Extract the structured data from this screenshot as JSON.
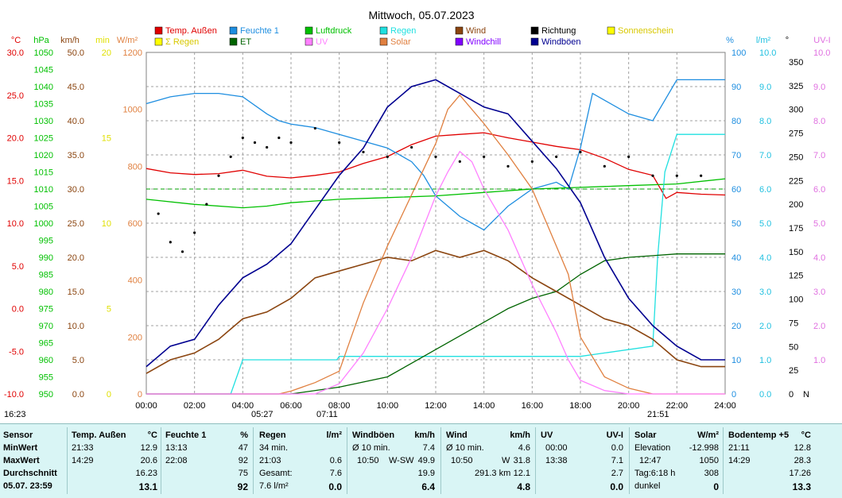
{
  "chart_data": {
    "type": "line",
    "title": "Mittwoch, 05.07.2023",
    "x_ticks": [
      "00:00",
      "02:00",
      "04:00",
      "06:00",
      "08:00",
      "10:00",
      "12:00",
      "14:00",
      "16:00",
      "18:00",
      "20:00",
      "22:00",
      "24:00"
    ],
    "xlim": [
      0,
      24
    ],
    "grid": true,
    "legend_position": "top",
    "legend": [
      {
        "name": "Temp. Außen",
        "color": "#e00000"
      },
      {
        "name": "Feuchte 1",
        "color": "#1e8ee0"
      },
      {
        "name": "Luftdruck",
        "color": "#00c000"
      },
      {
        "name": "Regen",
        "color": "#20e0e0"
      },
      {
        "name": "Wind",
        "color": "#8b4510"
      },
      {
        "name": "Richtung",
        "color": "#000000"
      },
      {
        "name": "Sonnenschein",
        "color": "#ffff00"
      },
      {
        "name": "Σ Regen",
        "color": "#ffff00"
      },
      {
        "name": "ET",
        "color": "#006400"
      },
      {
        "name": "UV",
        "color": "#ff80ff"
      },
      {
        "name": "Solar",
        "color": "#e08040"
      },
      {
        "name": "Windchill",
        "color": "#8000ff"
      },
      {
        "name": "Windböen",
        "color": "#000090"
      }
    ],
    "axes": {
      "temp": {
        "unit": "°C",
        "ylim": [
          -10,
          30
        ],
        "ticks": [
          "30.0",
          "25.0",
          "20.0",
          "15.0",
          "10.0",
          "5.0",
          "0.0",
          "-5.0",
          "-10.0"
        ],
        "color": "#e00000"
      },
      "pressure": {
        "unit": "hPa",
        "ylim": [
          950,
          1050
        ],
        "ticks": [
          "1050",
          "1045",
          "1040",
          "1035",
          "1030",
          "1025",
          "1020",
          "1015",
          "1010",
          "1005",
          "1000",
          "995",
          "990",
          "985",
          "980",
          "975",
          "970",
          "965",
          "960",
          "955",
          "950"
        ],
        "color": "#00c000"
      },
      "wind": {
        "unit": "km/h",
        "ylim": [
          0,
          50
        ],
        "ticks": [
          "50.0",
          "45.0",
          "40.0",
          "35.0",
          "30.0",
          "25.0",
          "20.0",
          "15.0",
          "10.0",
          "5.0",
          "0.0"
        ],
        "color": "#8b4510"
      },
      "minutes": {
        "unit": "min",
        "ylim": [
          0,
          20
        ],
        "ticks": [
          "20",
          "15",
          "10",
          "5",
          "0"
        ],
        "color": "#e0e000"
      },
      "solar": {
        "unit": "W/m²",
        "ylim": [
          0,
          1200
        ],
        "ticks": [
          "1200",
          "1000",
          "800",
          "600",
          "400",
          "200",
          "0"
        ],
        "color": "#e08040"
      },
      "humidity": {
        "unit": "%",
        "ylim": [
          0,
          100
        ],
        "ticks": [
          "100",
          "90",
          "80",
          "70",
          "60",
          "50",
          "40",
          "30",
          "20",
          "10",
          "0"
        ],
        "color": "#1e8ee0"
      },
      "rain": {
        "unit": "l/m²",
        "ylim": [
          0,
          10
        ],
        "ticks": [
          "10.0",
          "9.0",
          "8.0",
          "7.0",
          "6.0",
          "5.0",
          "4.0",
          "3.0",
          "2.0",
          "1.0",
          "0.0"
        ],
        "color": "#20c0e0"
      },
      "direction": {
        "unit": "°",
        "ylim": [
          0,
          360
        ],
        "ticks": [
          "350",
          "325",
          "300",
          "275",
          "250",
          "225",
          "200",
          "175",
          "150",
          "125",
          "100",
          "75",
          "50",
          "25",
          "0"
        ],
        "bottom_label": "N",
        "color": "#000000"
      },
      "uv": {
        "unit": "UV-I",
        "ylim": [
          0,
          10
        ],
        "ticks": [
          "10.0",
          "9.0",
          "8.0",
          "7.0",
          "6.0",
          "5.0",
          "4.0",
          "3.0",
          "2.0",
          "1.0"
        ],
        "color": "#e070e0"
      }
    },
    "sun_markers": {
      "sunrise": "05:27",
      "sunset": "21:51",
      "solar_noon": "07:11",
      "first": "16:23"
    },
    "series": [
      {
        "name": "Temp. Außen",
        "axis": "temp",
        "x": [
          0,
          1,
          2,
          3,
          4,
          5,
          6,
          7,
          8,
          9,
          10,
          11,
          12,
          13,
          14,
          15,
          16,
          17,
          18,
          19,
          20,
          21,
          21.55,
          22,
          23,
          24
        ],
        "y": [
          16.4,
          15.9,
          15.7,
          15.8,
          16.2,
          15.5,
          15.3,
          15.6,
          16,
          17,
          17.8,
          19.2,
          20.2,
          20.4,
          20.6,
          20,
          19.5,
          19,
          18.6,
          17.6,
          16.3,
          15.6,
          12.9,
          13.6,
          13.4,
          13.3
        ]
      },
      {
        "name": "Feuchte 1",
        "axis": "humidity",
        "x": [
          0,
          1,
          2,
          3,
          4,
          5,
          5.5,
          6,
          7,
          8,
          9,
          10,
          11,
          11.5,
          12,
          12.5,
          13,
          13.5,
          14,
          15,
          16,
          17,
          17.5,
          18,
          18.5,
          19,
          20,
          21,
          21.5,
          22,
          23,
          24
        ],
        "y": [
          85,
          87,
          88,
          88,
          87,
          82,
          80,
          79,
          78,
          76,
          74,
          72,
          68,
          64,
          58,
          55,
          52,
          50,
          48,
          55,
          60,
          62,
          60,
          72,
          88,
          86,
          82,
          80,
          86,
          92,
          92,
          92
        ]
      },
      {
        "name": "Luftdruck",
        "axis": "pressure",
        "x": [
          0,
          2,
          4,
          5,
          6,
          8,
          10,
          12,
          14,
          16,
          18,
          20,
          22,
          24
        ],
        "y": [
          1007,
          1005.5,
          1004.5,
          1005,
          1006,
          1007,
          1007.5,
          1008,
          1009,
          1010,
          1010.5,
          1011,
          1011.5,
          1013
        ]
      },
      {
        "name": "Regen",
        "axis": "rain",
        "x": [
          0,
          3.5,
          3.9,
          4,
          7.9,
          8,
          17.9,
          18,
          21,
          21.2,
          21.5,
          22,
          24
        ],
        "y": [
          0,
          0,
          0.8,
          1,
          1,
          1.1,
          1.1,
          1.1,
          1.4,
          4,
          6.5,
          7.6,
          7.6
        ]
      },
      {
        "name": "ET",
        "axis": "rain",
        "x": [
          0,
          6,
          8,
          10,
          11,
          12,
          13,
          14,
          15,
          16,
          17,
          18,
          19,
          20,
          21,
          22,
          24
        ],
        "y": [
          0,
          0,
          0.2,
          0.5,
          0.9,
          1.3,
          1.7,
          2.1,
          2.5,
          2.8,
          3,
          3.5,
          3.9,
          4,
          4.05,
          4.1,
          4.1
        ]
      },
      {
        "name": "Wind",
        "axis": "wind",
        "x": [
          0,
          1,
          2,
          3,
          4,
          5,
          6,
          7,
          8,
          9,
          10,
          11,
          12,
          13,
          14,
          15,
          16,
          17,
          18,
          19,
          20,
          21,
          22,
          23,
          24
        ],
        "y": [
          3,
          5,
          6,
          8,
          11,
          12,
          14,
          17,
          18,
          19,
          20,
          19.5,
          21,
          20,
          21,
          19.5,
          17,
          15,
          13,
          11,
          10,
          8,
          5,
          4,
          4
        ]
      },
      {
        "name": "Windböen",
        "axis": "wind",
        "x": [
          0,
          1,
          2,
          3,
          4,
          5,
          6,
          7,
          8,
          9,
          10,
          11,
          12,
          13,
          14,
          15,
          16,
          17,
          18,
          19,
          20,
          21,
          22,
          23,
          24
        ],
        "y": [
          4,
          7,
          8,
          13,
          17,
          19,
          22,
          27,
          32,
          36,
          42,
          45,
          46,
          44,
          42,
          41,
          37,
          33,
          28,
          20,
          14,
          10,
          7,
          5,
          5
        ]
      },
      {
        "name": "Solar",
        "axis": "solar",
        "x": [
          0,
          5.5,
          6,
          7,
          8,
          8.5,
          9,
          10,
          11,
          12,
          12.5,
          13,
          14,
          15,
          16,
          17,
          17.5,
          18,
          19,
          20,
          21,
          24
        ],
        "y": [
          0,
          0,
          10,
          40,
          80,
          200,
          320,
          520,
          700,
          880,
          1000,
          1050,
          950,
          840,
          720,
          520,
          420,
          200,
          60,
          20,
          0,
          0
        ]
      },
      {
        "name": "UV",
        "axis": "uv",
        "x": [
          0,
          7,
          8,
          9,
          10,
          11,
          12,
          12.5,
          13,
          13.5,
          14,
          15,
          16,
          17,
          17.5,
          18,
          19,
          20,
          24
        ],
        "y": [
          0,
          0,
          0.3,
          1.2,
          2.5,
          4,
          5.8,
          6.5,
          7.1,
          6.8,
          6,
          4.8,
          3.2,
          1.8,
          1,
          0.4,
          0.1,
          0,
          0
        ]
      },
      {
        "name": "Richtung",
        "axis": "direction",
        "type": "scatter",
        "x": [
          0.5,
          1,
          1.5,
          2,
          2.5,
          3,
          3.5,
          4,
          4.5,
          5,
          5.5,
          6,
          7,
          8,
          9,
          10,
          11,
          12,
          13,
          14,
          15,
          16,
          17,
          18,
          19,
          20,
          21,
          22,
          23
        ],
        "y": [
          190,
          160,
          150,
          170,
          200,
          230,
          250,
          270,
          265,
          260,
          270,
          265,
          280,
          265,
          255,
          250,
          260,
          250,
          245,
          250,
          240,
          245,
          250,
          255,
          240,
          250,
          230,
          230,
          230
        ]
      }
    ]
  },
  "summary": {
    "sensor": {
      "header": "Sensor",
      "rows": [
        "MinWert",
        "MaxWert",
        "Durchschnitt",
        "05.07. 23:59"
      ]
    },
    "temp": {
      "header": "Temp. Außen",
      "unit": "°C",
      "rows": [
        [
          "21:33",
          "12.9"
        ],
        [
          "14:29",
          "20.6"
        ],
        [
          "",
          "16.23"
        ],
        [
          "",
          "13.1"
        ]
      ]
    },
    "feuchte": {
      "header": "Feuchte 1",
      "unit": "%",
      "rows": [
        [
          "13:13",
          "47"
        ],
        [
          "22:08",
          "92"
        ],
        [
          "",
          "75"
        ],
        [
          "",
          "92"
        ]
      ]
    },
    "regen": {
      "header": "Regen",
      "unit": "l/m²",
      "rows": [
        [
          "34 min.",
          ""
        ],
        [
          "21:03",
          "0.6"
        ],
        [
          "Gesamt:",
          "7.6"
        ],
        [
          "7.6 l/m²",
          "0.0"
        ]
      ]
    },
    "windboeen": {
      "header": "Windböen",
      "unit": "km/h",
      "rows": [
        [
          "Ø 10 min.",
          "",
          "7.4"
        ],
        [
          "10:50",
          "W-SW",
          "49.9"
        ],
        [
          "",
          "",
          "19.9"
        ],
        [
          "",
          "",
          "6.4"
        ]
      ]
    },
    "wind": {
      "header": "Wind",
      "unit": "km/h",
      "rows": [
        [
          "Ø 10 min.",
          "",
          "4.6"
        ],
        [
          "10:50",
          "W",
          "31.8"
        ],
        [
          "",
          "291.3 km",
          "12.1"
        ],
        [
          "",
          "",
          "4.8"
        ]
      ]
    },
    "uv": {
      "header": "UV",
      "unit": "UV-I",
      "rows": [
        [
          "00:00",
          "0.0"
        ],
        [
          "13:38",
          "7.1"
        ],
        [
          "",
          "2.7"
        ],
        [
          "",
          "0.0"
        ]
      ]
    },
    "solar": {
      "header": "Solar",
      "unit": "W/m²",
      "rows": [
        [
          "Elevation",
          "-12.998"
        ],
        [
          "12:47",
          "1050"
        ],
        [
          "Tag:6:18 h",
          "308"
        ],
        [
          "dunkel",
          "0"
        ]
      ]
    },
    "boden": {
      "header": "Bodentemp +5",
      "unit": "°C",
      "rows": [
        [
          "21:11",
          "12.8"
        ],
        [
          "14:29",
          "28.3"
        ],
        [
          "",
          "17.26"
        ],
        [
          "",
          "13.3"
        ]
      ]
    }
  }
}
